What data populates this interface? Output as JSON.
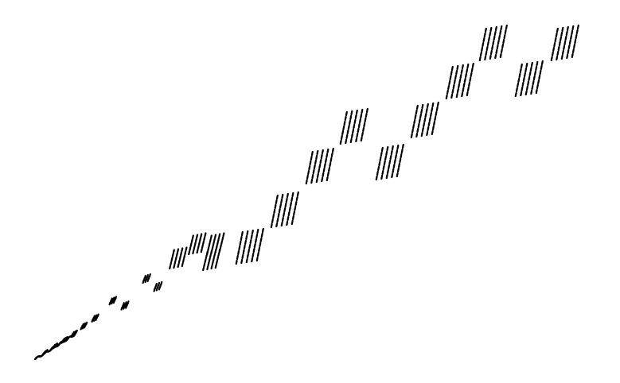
{
  "figure": {
    "kind": "self-affine fractal point cloud",
    "background_color": "#ffffff",
    "point_color": "#000000"
  }
}
